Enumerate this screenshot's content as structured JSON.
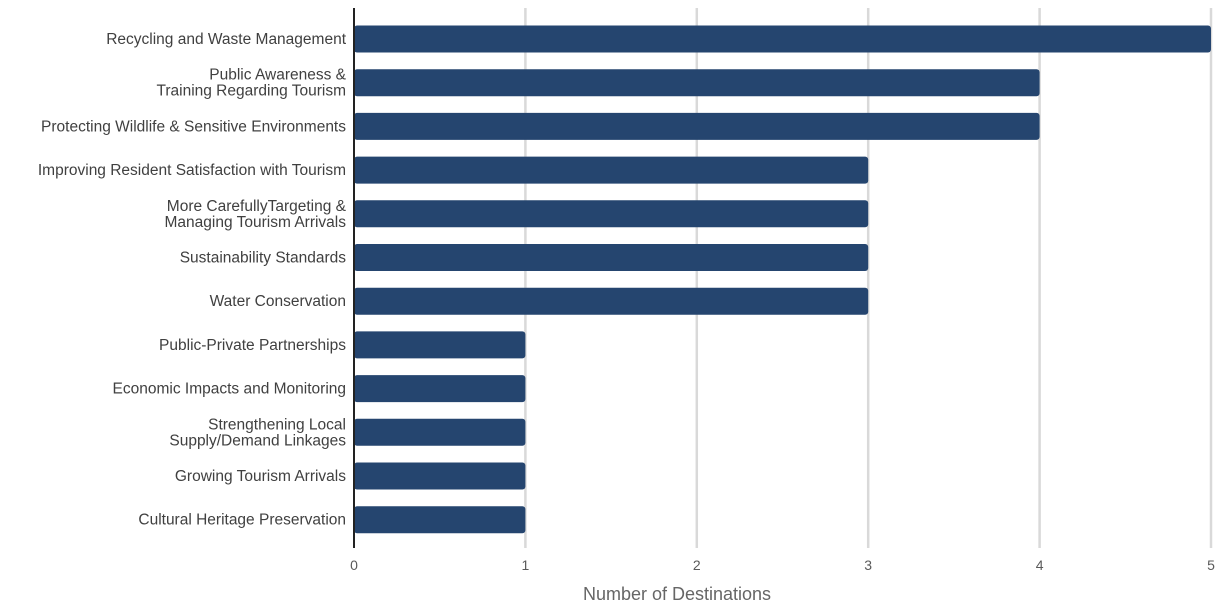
{
  "chart_data": {
    "type": "bar",
    "orientation": "horizontal",
    "title": "",
    "xlabel": "Number of Destinations",
    "ylabel": "",
    "xlim": [
      0,
      5
    ],
    "x_ticks": [
      "0",
      "1",
      "2",
      "3",
      "4",
      "5"
    ],
    "grid": "vertical",
    "bar_color": "#25456f",
    "grid_color": "#d9d9d9",
    "axis_color": "#222222",
    "categories": [
      [
        "Recycling and Waste Management"
      ],
      [
        "Public Awareness &",
        "Training Regarding Tourism"
      ],
      [
        "Protecting Wildlife & Sensitive Environments"
      ],
      [
        "Improving Resident Satisfaction with Tourism"
      ],
      [
        "More CarefullyTargeting &",
        "Managing Tourism Arrivals"
      ],
      [
        "Sustainability Standards"
      ],
      [
        "Water Conservation"
      ],
      [
        "Public-Private Partnerships"
      ],
      [
        "Economic Impacts and Monitoring"
      ],
      [
        "Strengthening Local",
        "Supply/Demand Linkages"
      ],
      [
        "Growing Tourism Arrivals"
      ],
      [
        "Cultural Heritage Preservation"
      ]
    ],
    "values": [
      5,
      4,
      4,
      3,
      3,
      3,
      3,
      1,
      1,
      1,
      1,
      1
    ]
  }
}
